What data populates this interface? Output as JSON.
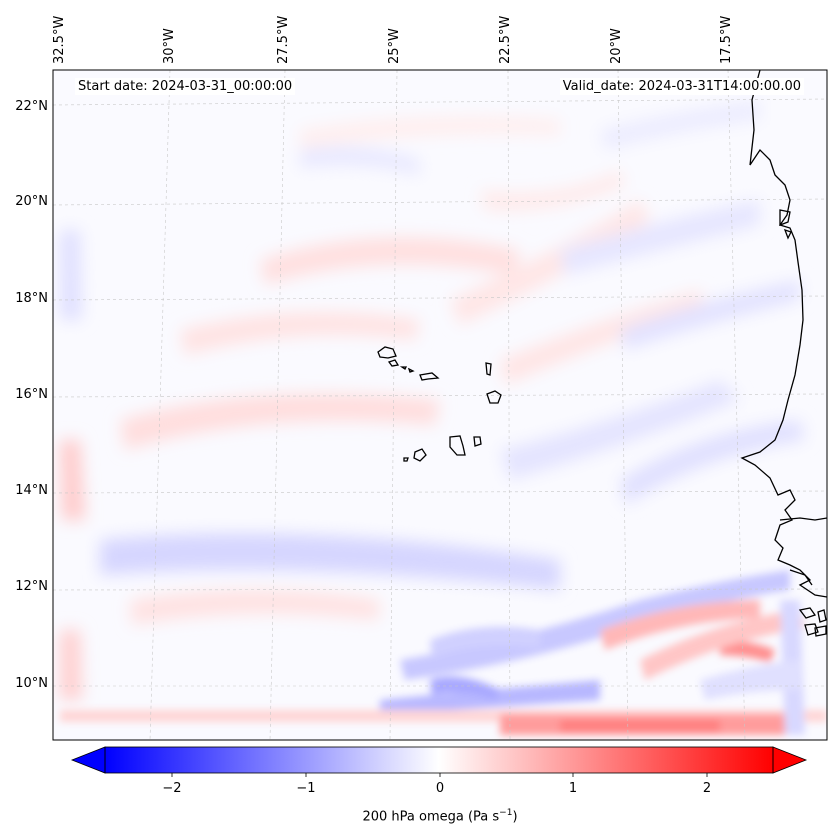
{
  "map": {
    "header": {
      "start_date": "Start date: 2024-03-31_00:00:00",
      "valid_date": "Valid_date: 2024-03-31T14:00:00.00"
    },
    "longitude_labels": [
      "32.5°W",
      "30°W",
      "27.5°W",
      "25°W",
      "22.5°W",
      "20°W",
      "17.5°W"
    ],
    "latitude_labels": [
      "22°N",
      "20°N",
      "18°N",
      "16°N",
      "14°N",
      "12°N",
      "10°N"
    ],
    "colorbar": {
      "ticks": [
        "−2",
        "−1",
        "0",
        "1",
        "2"
      ],
      "label": "200 hPa omega (Pa s",
      "label_unit_exp": "−1",
      "label_close": ")",
      "min_color": "#0000ff",
      "mid_color": "#ffffff",
      "max_color": "#ff0000"
    },
    "colors": {
      "positive": "#ff0000",
      "negative": "#0000ff",
      "coastline": "#000000",
      "gridline": "#c8c8c8"
    }
  }
}
